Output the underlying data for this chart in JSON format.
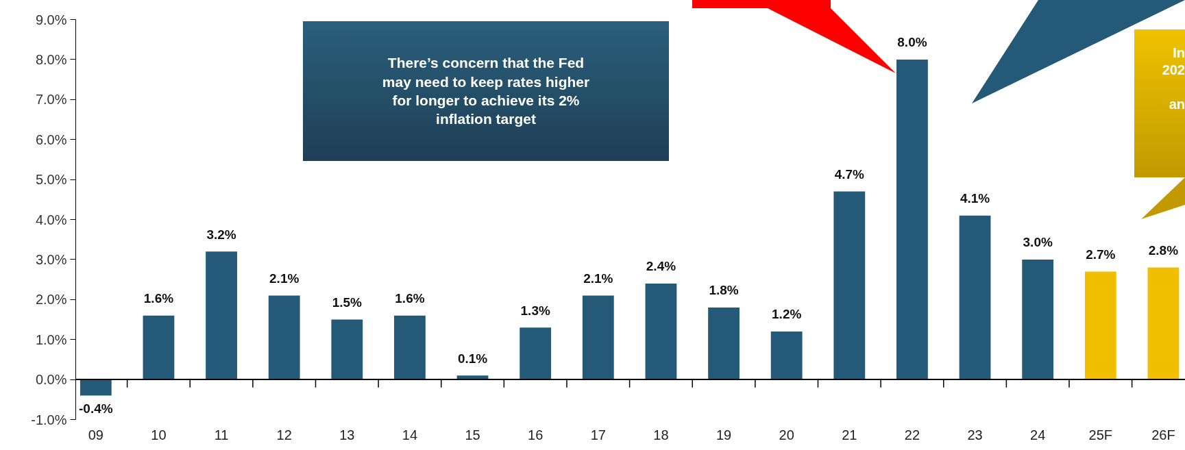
{
  "chart_data": {
    "type": "bar",
    "categories": [
      "09",
      "10",
      "11",
      "12",
      "13",
      "14",
      "15",
      "16",
      "17",
      "18",
      "19",
      "20",
      "21",
      "22",
      "23",
      "24",
      "25F",
      "26F"
    ],
    "values": [
      -0.4,
      1.6,
      3.2,
      2.1,
      1.5,
      1.6,
      0.1,
      1.3,
      2.1,
      2.4,
      1.8,
      1.2,
      4.7,
      8.0,
      4.1,
      3.0,
      2.7,
      2.8
    ],
    "colors": [
      "#245a78",
      "#245a78",
      "#245a78",
      "#245a78",
      "#245a78",
      "#245a78",
      "#245a78",
      "#245a78",
      "#245a78",
      "#245a78",
      "#245a78",
      "#245a78",
      "#245a78",
      "#245a78",
      "#245a78",
      "#245a78",
      "#f0c000",
      "#f0c000"
    ],
    "value_labels": [
      "-0.4%",
      "1.6%",
      "3.2%",
      "2.1%",
      "1.5%",
      "1.6%",
      "0.1%",
      "1.3%",
      "2.1%",
      "2.4%",
      "1.8%",
      "1.2%",
      "4.7%",
      "8.0%",
      "4.1%",
      "3.0%",
      "2.7%",
      "2.8%"
    ],
    "ylim": [
      -1.0,
      9.0
    ],
    "yticks": [
      {
        "value": -1,
        "label": "-1.0%"
      },
      {
        "value": 0,
        "label": "0.0%"
      },
      {
        "value": 1,
        "label": "1.0%"
      },
      {
        "value": 2,
        "label": "2.0%"
      },
      {
        "value": 3,
        "label": "3.0%"
      },
      {
        "value": 4,
        "label": "4.0%"
      },
      {
        "value": 5,
        "label": "5.0%"
      },
      {
        "value": 6,
        "label": "6.0%"
      },
      {
        "value": 7,
        "label": "7.0%"
      },
      {
        "value": 8,
        "label": "8.0%"
      },
      {
        "value": 9,
        "label": "9.0%"
      }
    ],
    "grid": false,
    "ref_lines": [
      {
        "axis": "y",
        "value": 0,
        "color": "#000000"
      }
    ],
    "annotations": [
      "There’s concern that the Fed\nmay need to keep rates higher\nfor longer to achieve its 2%\ninflation target",
      "In\n202\n\nan"
    ]
  }
}
